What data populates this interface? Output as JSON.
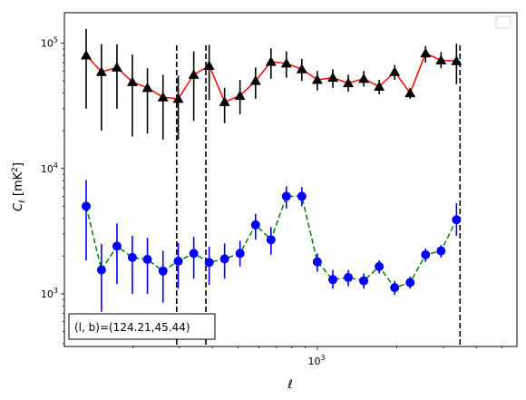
{
  "chart_data": {
    "type": "scatter",
    "title": "",
    "xlabel": "ℓ",
    "ylabel": "Cℓ  [mK²]",
    "xscale": "log",
    "yscale": "log",
    "xlim": [
      110,
      5700
    ],
    "ylim": [
      380,
      175000
    ],
    "grid": false,
    "legend": "top-right (empty)",
    "x_tick_labels": [
      {
        "value": 1000,
        "label": "10",
        "sup": "3"
      }
    ],
    "y_tick_labels": [
      {
        "value": 1000,
        "label": "10",
        "sup": "3"
      },
      {
        "value": 10000,
        "label": "10",
        "sup": "4"
      },
      {
        "value": 100000,
        "label": "10",
        "sup": "5"
      }
    ],
    "annotation": "(l, b)=(124.21,45.44)",
    "vlines": [
      {
        "x": 293,
        "color": "#000000",
        "style": "dashed"
      },
      {
        "x": 378,
        "color": "#000000",
        "style": "dashed"
      },
      {
        "x": 3470,
        "color": "#000000",
        "style": "dashed"
      }
    ],
    "series": [
      {
        "line_color": "#ff0000",
        "line_style": "solid",
        "marker": "triangle",
        "marker_color": "#000000",
        "errorbar_color": "#000000",
        "points": [
          {
            "x": 133,
            "y": 80000,
            "lo": 30000,
            "hi": 130000
          },
          {
            "x": 152,
            "y": 59000,
            "lo": 20000,
            "hi": 98000
          },
          {
            "x": 174,
            "y": 64000,
            "lo": 30000,
            "hi": 98000
          },
          {
            "x": 199,
            "y": 49000,
            "lo": 18000,
            "hi": 81000
          },
          {
            "x": 227,
            "y": 44000,
            "lo": 19000,
            "hi": 63000
          },
          {
            "x": 260,
            "y": 37000,
            "lo": 17000,
            "hi": 56000
          },
          {
            "x": 297,
            "y": 36000,
            "lo": 17000,
            "hi": 55000
          },
          {
            "x": 340,
            "y": 56000,
            "lo": 24000,
            "hi": 86000
          },
          {
            "x": 389,
            "y": 66000,
            "lo": 35000,
            "hi": 97000
          },
          {
            "x": 445,
            "y": 34000,
            "lo": 23000,
            "hi": 44000
          },
          {
            "x": 509,
            "y": 38000,
            "lo": 27000,
            "hi": 51000
          },
          {
            "x": 583,
            "y": 50000,
            "lo": 36000,
            "hi": 64000
          },
          {
            "x": 667,
            "y": 71000,
            "lo": 52000,
            "hi": 91000
          },
          {
            "x": 763,
            "y": 69000,
            "lo": 53000,
            "hi": 86000
          },
          {
            "x": 873,
            "y": 62000,
            "lo": 50000,
            "hi": 75000
          },
          {
            "x": 999,
            "y": 51000,
            "lo": 42000,
            "hi": 60000
          },
          {
            "x": 1144,
            "y": 53000,
            "lo": 44000,
            "hi": 62000
          },
          {
            "x": 1309,
            "y": 48000,
            "lo": 41000,
            "hi": 56000
          },
          {
            "x": 1498,
            "y": 52000,
            "lo": 45000,
            "hi": 60000
          },
          {
            "x": 1714,
            "y": 45000,
            "lo": 39000,
            "hi": 51000
          },
          {
            "x": 1962,
            "y": 59000,
            "lo": 51000,
            "hi": 67000
          },
          {
            "x": 2245,
            "y": 40000,
            "lo": 36000,
            "hi": 44000
          },
          {
            "x": 2569,
            "y": 83000,
            "lo": 70000,
            "hi": 95000
          },
          {
            "x": 2940,
            "y": 73000,
            "lo": 63000,
            "hi": 85000
          },
          {
            "x": 3364,
            "y": 72000,
            "lo": 47000,
            "hi": 99000
          }
        ]
      },
      {
        "line_color": "#008000",
        "line_style": "dashed",
        "marker": "circle",
        "marker_color": "#0000ff",
        "errorbar_color": "#0000ff",
        "points": [
          {
            "x": 133,
            "y": 5000,
            "lo": 1850,
            "hi": 8100
          },
          {
            "x": 152,
            "y": 1550,
            "lo": 720,
            "hi": 2500
          },
          {
            "x": 174,
            "y": 2400,
            "lo": 1200,
            "hi": 3650
          },
          {
            "x": 199,
            "y": 1950,
            "lo": 1000,
            "hi": 2900
          },
          {
            "x": 227,
            "y": 1880,
            "lo": 1000,
            "hi": 2800
          },
          {
            "x": 260,
            "y": 1520,
            "lo": 850,
            "hi": 2200
          },
          {
            "x": 297,
            "y": 1820,
            "lo": 1100,
            "hi": 2550
          },
          {
            "x": 340,
            "y": 2100,
            "lo": 1320,
            "hi": 2850
          },
          {
            "x": 389,
            "y": 1780,
            "lo": 1180,
            "hi": 2380
          },
          {
            "x": 445,
            "y": 1900,
            "lo": 1320,
            "hi": 2520
          },
          {
            "x": 509,
            "y": 2100,
            "lo": 1650,
            "hi": 2650
          },
          {
            "x": 583,
            "y": 3550,
            "lo": 2700,
            "hi": 4350
          },
          {
            "x": 667,
            "y": 2700,
            "lo": 2050,
            "hi": 3400
          },
          {
            "x": 763,
            "y": 6000,
            "lo": 4800,
            "hi": 7200
          },
          {
            "x": 873,
            "y": 6000,
            "lo": 5000,
            "hi": 7100
          },
          {
            "x": 999,
            "y": 1800,
            "lo": 1500,
            "hi": 2100
          },
          {
            "x": 1144,
            "y": 1300,
            "lo": 1100,
            "hi": 1550
          },
          {
            "x": 1309,
            "y": 1350,
            "lo": 1150,
            "hi": 1550
          },
          {
            "x": 1498,
            "y": 1270,
            "lo": 1100,
            "hi": 1450
          },
          {
            "x": 1714,
            "y": 1650,
            "lo": 1450,
            "hi": 1850
          },
          {
            "x": 1962,
            "y": 1120,
            "lo": 980,
            "hi": 1270
          },
          {
            "x": 2245,
            "y": 1230,
            "lo": 1100,
            "hi": 1370
          },
          {
            "x": 2569,
            "y": 2050,
            "lo": 1800,
            "hi": 2300
          },
          {
            "x": 2940,
            "y": 2200,
            "lo": 1950,
            "hi": 2450
          },
          {
            "x": 3364,
            "y": 3900,
            "lo": 2900,
            "hi": 5300
          }
        ]
      }
    ]
  }
}
